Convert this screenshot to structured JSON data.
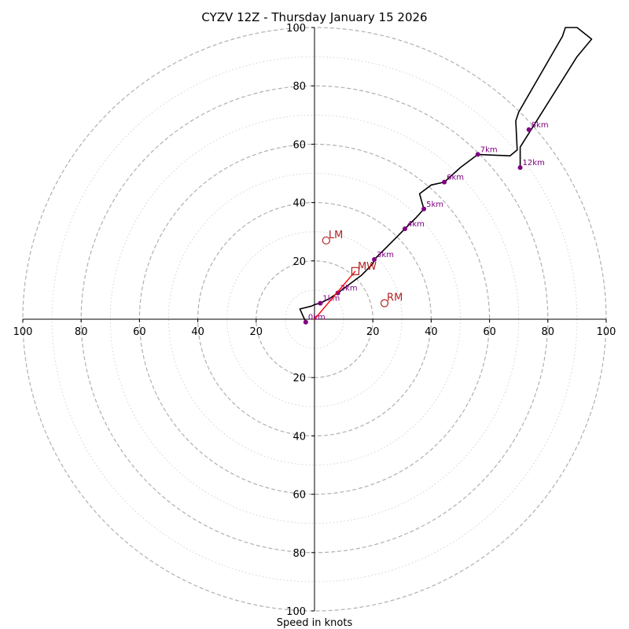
{
  "chart_data": {
    "type": "hodograph",
    "title": "CYZV 12Z - Thursday January 15 2026",
    "xlabel": "Speed in knots",
    "axis_range": [
      -100,
      100
    ],
    "ring_major": [
      20,
      40,
      60,
      80,
      100
    ],
    "ring_minor": [
      10,
      30,
      50,
      70,
      90
    ],
    "tick_labels": {
      "x": [
        {
          "v": -100,
          "label": "100"
        },
        {
          "v": -80,
          "label": "80"
        },
        {
          "v": -60,
          "label": "60"
        },
        {
          "v": -40,
          "label": "40"
        },
        {
          "v": -20,
          "label": "20"
        },
        {
          "v": 20,
          "label": "20"
        },
        {
          "v": 40,
          "label": "40"
        },
        {
          "v": 60,
          "label": "60"
        },
        {
          "v": 80,
          "label": "80"
        },
        {
          "v": 100,
          "label": "100"
        }
      ],
      "y": [
        {
          "v": 100,
          "label": "100"
        },
        {
          "v": 80,
          "label": "80"
        },
        {
          "v": 60,
          "label": "60"
        },
        {
          "v": 40,
          "label": "40"
        },
        {
          "v": 20,
          "label": "20"
        },
        {
          "v": -20,
          "label": "20"
        },
        {
          "v": -40,
          "label": "40"
        },
        {
          "v": -60,
          "label": "60"
        },
        {
          "v": -80,
          "label": "80"
        },
        {
          "v": -100,
          "label": "100"
        }
      ]
    },
    "wind_profile": [
      [
        -3,
        -1
      ],
      [
        -5,
        3.5
      ],
      [
        -1,
        4.5
      ],
      [
        0,
        5
      ],
      [
        2,
        5.5
      ],
      [
        4,
        6.5
      ],
      [
        5,
        7
      ],
      [
        8,
        9
      ],
      [
        12,
        12
      ],
      [
        16,
        15
      ],
      [
        20,
        19
      ],
      [
        20.5,
        20.5
      ],
      [
        25,
        25
      ],
      [
        31,
        31
      ],
      [
        35,
        35
      ],
      [
        37.5,
        37.8
      ],
      [
        36,
        43
      ],
      [
        40,
        46
      ],
      [
        44.5,
        47
      ],
      [
        50,
        52
      ],
      [
        56,
        56.5
      ],
      [
        67,
        56
      ],
      [
        69.5,
        58
      ],
      [
        69,
        68
      ],
      [
        70,
        71
      ],
      [
        85,
        97
      ],
      [
        86,
        100
      ],
      [
        90,
        100
      ],
      [
        95,
        96
      ],
      [
        90,
        90
      ],
      [
        70.5,
        59
      ],
      [
        70.5,
        52
      ]
    ],
    "height_markers": [
      {
        "label": "0km",
        "u": -3,
        "v": -1
      },
      {
        "label": "1km",
        "u": 2,
        "v": 5.5
      },
      {
        "label": "2km",
        "u": 8,
        "v": 9
      },
      {
        "label": "3km",
        "u": 20.5,
        "v": 20.5
      },
      {
        "label": "4km",
        "u": 31,
        "v": 31
      },
      {
        "label": "5km",
        "u": 37.5,
        "v": 37.8
      },
      {
        "label": "6km",
        "u": 44.5,
        "v": 47
      },
      {
        "label": "7km",
        "u": 56,
        "v": 56.5
      },
      {
        "label": "8km",
        "u": 73.5,
        "v": 65
      },
      {
        "label": "12km",
        "u": 70.5,
        "v": 52
      }
    ],
    "storm_motion": {
      "shear_vector": {
        "from": [
          0,
          0
        ],
        "to": [
          14,
          16.5
        ]
      },
      "mean_wind": {
        "label": "MW",
        "u": 14,
        "v": 16.5
      },
      "left_mover": {
        "label": "LM",
        "u": 4,
        "v": 27
      },
      "right_mover": {
        "label": "RM",
        "u": 24,
        "v": 5.5
      }
    },
    "colors": {
      "profile": "#000000",
      "height_dot": "#800080",
      "storm": "#b22222",
      "shear": "#ff0000",
      "ring": "#b0b0b0"
    }
  }
}
